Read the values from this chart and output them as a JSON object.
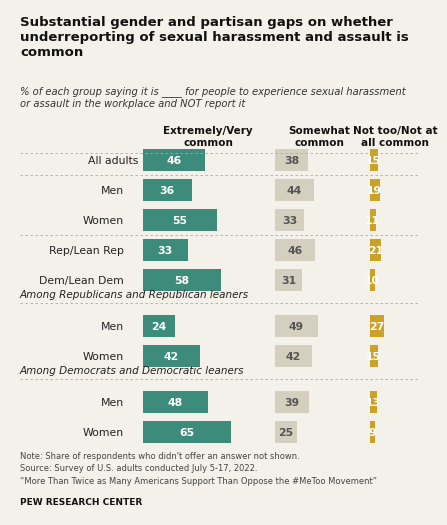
{
  "title": "Substantial gender and partisan gaps on whether\nunderreporting of sexual harassment and assault is\ncommon",
  "subtitle": "% of each group saying it is ____ for people to experience sexual harassment\nor assault in the workplace and NOT report it",
  "col_headers": [
    "Extremely/Very\ncommon",
    "Somewhat\ncommon",
    "Not too/Not at\nall common"
  ],
  "rows": [
    {
      "label": "All adults",
      "values": [
        46,
        38,
        15
      ],
      "indent": false,
      "section_header": null
    },
    {
      "label": "Men",
      "values": [
        36,
        44,
        19
      ],
      "indent": true,
      "section_header": null
    },
    {
      "label": "Women",
      "values": [
        55,
        33,
        11
      ],
      "indent": true,
      "section_header": null
    },
    {
      "label": "Rep/Lean Rep",
      "values": [
        33,
        46,
        21
      ],
      "indent": true,
      "section_header": null
    },
    {
      "label": "Dem/Lean Dem",
      "values": [
        58,
        31,
        10
      ],
      "indent": true,
      "section_header": null
    },
    {
      "label": "Men",
      "values": [
        24,
        49,
        27
      ],
      "indent": true,
      "section_header": "Among Republicans and Republican leaners"
    },
    {
      "label": "Women",
      "values": [
        42,
        42,
        15
      ],
      "indent": true,
      "section_header": null
    },
    {
      "label": "Men",
      "values": [
        48,
        39,
        13
      ],
      "indent": true,
      "section_header": "Among Democrats and Democratic leaners"
    },
    {
      "label": "Women",
      "values": [
        65,
        25,
        9
      ],
      "indent": true,
      "section_header": null
    }
  ],
  "dotted_after_rows": [
    0,
    2,
    4,
    6
  ],
  "color_green": "#3d8b7a",
  "color_tan": "#d5cfc0",
  "color_gold": "#c9a227",
  "color_bg": "#f4f1ea",
  "note1": "Note: Share of respondents who didn't offer an answer not shown.",
  "note2": "Source: Survey of U.S. adults conducted July 5-17, 2022.",
  "note3": "“More Than Twice as Many Americans Support Than Oppose the #MeToo Movement”",
  "pew": "PEW RESEARCH CENTER"
}
